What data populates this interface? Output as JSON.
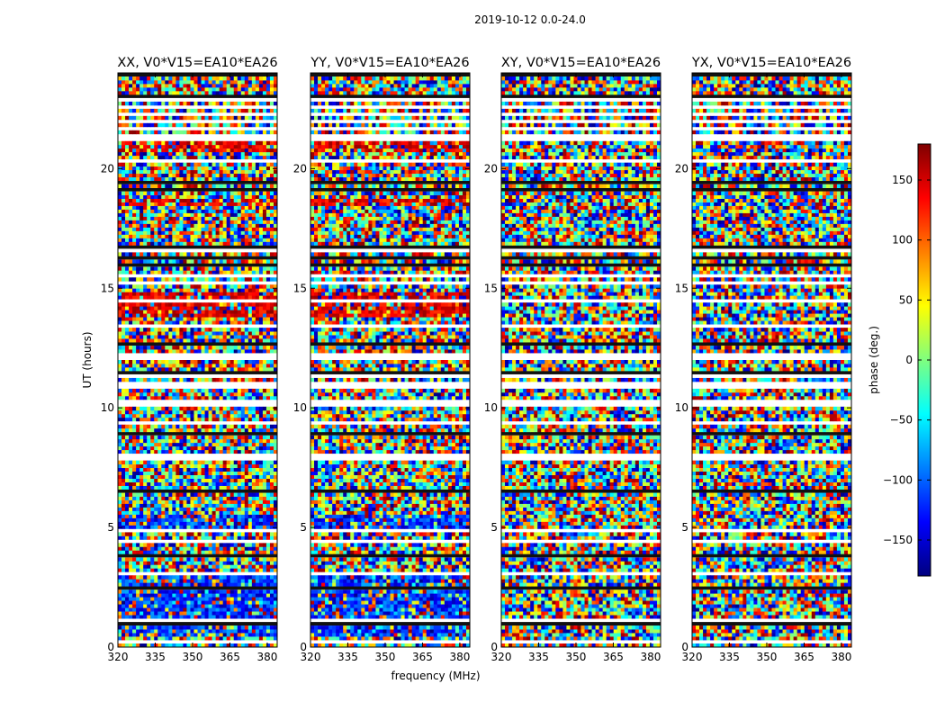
{
  "chart_data": {
    "type": "heatmap",
    "suptitle": "2019-10-12 0.0-24.0",
    "xlabel": "frequency (MHz)",
    "ylabel": "UT (hours)",
    "xlim": [
      320,
      384
    ],
    "ylim": [
      0,
      24
    ],
    "xticks": [
      320,
      335,
      350,
      365,
      380
    ],
    "yticks": [
      0,
      5,
      10,
      15,
      20
    ],
    "grid": false,
    "colormap": "jet",
    "colorbar": {
      "label": "phase (deg.)",
      "range": [
        -180,
        180
      ],
      "ticks": [
        -150,
        -100,
        -50,
        0,
        50,
        100,
        150
      ],
      "tick_labels": [
        "−150",
        "−100",
        "−50",
        "0",
        "50",
        "100",
        "150"
      ],
      "colors": [
        "#00007f",
        "#0000ff",
        "#007fff",
        "#00ffff",
        "#7fff7f",
        "#ffff00",
        "#ff7f00",
        "#ff0000",
        "#7f0000"
      ]
    },
    "panels": [
      {
        "title": "XX, V0*V15=EA10*EA26",
        "coherent_bands": [
          [
            0.5,
            3.0,
            "blue"
          ],
          [
            4.9,
            5.6,
            "blue"
          ],
          [
            13.8,
            14.8,
            "red"
          ],
          [
            18.4,
            18.8,
            "red"
          ],
          [
            20.7,
            21.1,
            "red"
          ]
        ]
      },
      {
        "title": "YY, V0*V15=EA10*EA26",
        "coherent_bands": [
          [
            0.5,
            3.0,
            "blue"
          ],
          [
            4.9,
            5.6,
            "blue"
          ],
          [
            13.8,
            14.8,
            "red"
          ],
          [
            18.4,
            18.8,
            "red"
          ],
          [
            20.7,
            21.1,
            "red"
          ]
        ]
      },
      {
        "title": "XY, V0*V15=EA10*EA26",
        "coherent_bands": []
      },
      {
        "title": "YX, V0*V15=EA10*EA26",
        "coherent_bands": []
      }
    ]
  }
}
